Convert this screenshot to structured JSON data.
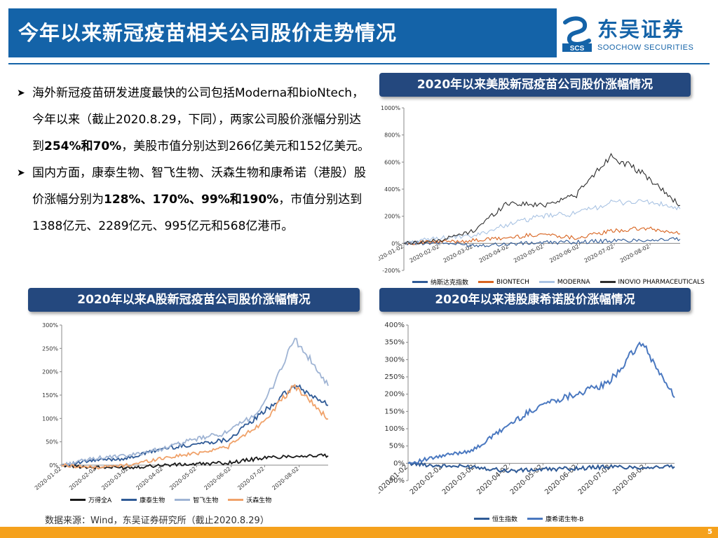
{
  "page_title": "今年以来新冠疫苗相关公司股价走势情况",
  "logo": {
    "cn": "东吴证券",
    "en": "SOOCHOW SECURITIES",
    "mark": "SCS"
  },
  "bullets": [
    {
      "parts": [
        {
          "t": "海外新冠疫苗研发进度最快的公司包括Moderna和bioNtech，今年以来（截止2020.8.29，下同），两家公司股价涨幅分别达到",
          "b": false
        },
        {
          "t": "254%和70%",
          "b": true
        },
        {
          "t": "，美股市值分别达到266亿美元和152亿美元。",
          "b": false
        }
      ]
    },
    {
      "parts": [
        {
          "t": "国内方面，康泰生物、智飞生物、沃森生物和康希诺（港股）股价涨幅分别为",
          "b": false
        },
        {
          "t": "128%、170%、99%和190%",
          "b": true
        },
        {
          "t": "，市值分别达到1388亿元、2289亿元、995亿元和568亿港币。",
          "b": false
        }
      ]
    }
  ],
  "source_note": "数据来源：Wind，东吴证券研究所（截止2020.8.29）",
  "page_number": "5",
  "chart_data": [
    {
      "id": "us",
      "type": "line",
      "title": "2020年以来美股新冠疫苗公司股价涨幅情况",
      "ylim": [
        -200,
        1000
      ],
      "yticks": [
        -200,
        0,
        200,
        400,
        600,
        800,
        1000
      ],
      "ytick_labels": [
        "-200%",
        "0%",
        "200%",
        "400%",
        "600%",
        "800%",
        "1000%"
      ],
      "x": [
        "2020-01-02",
        "2020-02-02",
        "2020-03-02",
        "2020-04-02",
        "2020-05-02",
        "2020-06-02",
        "2020-07-02",
        "2020-08-02",
        "2020-08-28"
      ],
      "xtick_labels": [
        "2020-01-02",
        "2020-02-02",
        "2020-03-02",
        "2020-04-02",
        "2020-05-02",
        "2020-06-02",
        "2020-07-02",
        "2020-08-02"
      ],
      "grid": false,
      "legend": "bottom",
      "series": [
        {
          "name": "纳斯达克指数",
          "color": "#2f5a96",
          "values": [
            0,
            5,
            -15,
            -5,
            5,
            10,
            18,
            25,
            30
          ]
        },
        {
          "name": "BIONTECH",
          "color": "#d86420",
          "values": [
            0,
            10,
            20,
            40,
            70,
            40,
            90,
            110,
            70
          ]
        },
        {
          "name": "MODERNA",
          "color": "#a9c3e3",
          "values": [
            0,
            40,
            50,
            140,
            200,
            220,
            300,
            310,
            254
          ]
        },
        {
          "name": "INOVIO PHARMACEUTICALS",
          "color": "#2d2d2d",
          "values": [
            0,
            20,
            90,
            300,
            280,
            360,
            650,
            500,
            280
          ]
        }
      ]
    },
    {
      "id": "a",
      "type": "line",
      "title": "2020年以来A股新冠疫苗公司股价涨幅情况",
      "ylim": [
        0,
        300
      ],
      "yticks": [
        0,
        50,
        100,
        150,
        200,
        250,
        300
      ],
      "ytick_labels": [
        "0%",
        "50%",
        "100%",
        "150%",
        "200%",
        "250%",
        "300%"
      ],
      "x": [
        "2020-01-02",
        "2020-02-02",
        "2020-03-02",
        "2020-04-02",
        "2020-05-02",
        "2020-06-02",
        "2020-07-02",
        "2020-08-02",
        "2020-08-28"
      ],
      "xtick_labels": [
        "2020-01-02",
        "2020-02-02",
        "2020-03-02",
        "2020-04-02",
        "2020-05-02",
        "2020-06-02",
        "2020-07-02",
        "2020-08-02"
      ],
      "grid": false,
      "legend": "bottom",
      "series": [
        {
          "name": "万得全A",
          "color": "#1a1a1a",
          "values": [
            0,
            -5,
            -5,
            0,
            2,
            5,
            15,
            20,
            20
          ]
        },
        {
          "name": "康泰生物",
          "color": "#2f5a96",
          "values": [
            0,
            10,
            15,
            35,
            45,
            55,
            110,
            170,
            128
          ]
        },
        {
          "name": "智飞生物",
          "color": "#9fb4d4",
          "values": [
            0,
            15,
            20,
            35,
            55,
            70,
            120,
            270,
            170
          ]
        },
        {
          "name": "沃森生物",
          "color": "#f0a26a",
          "values": [
            0,
            -5,
            0,
            15,
            25,
            40,
            90,
            170,
            99
          ]
        }
      ]
    },
    {
      "id": "hk",
      "type": "line",
      "title": "2020年以来港股康希诺股价涨幅情况",
      "ylim": [
        -50,
        400
      ],
      "yticks": [
        -50,
        0,
        50,
        100,
        150,
        200,
        250,
        300,
        350,
        400
      ],
      "ytick_labels": [
        "-50%",
        "0%",
        "50%",
        "100%",
        "150%",
        "200%",
        "250%",
        "300%",
        "350%",
        "400%"
      ],
      "x": [
        "2020-01-02",
        "2020-02-02",
        "2020-03-02",
        "2020-04-02",
        "2020-05-02",
        "2020-06-02",
        "2020-07-02",
        "2020-08-02",
        "2020-08-28"
      ],
      "xtick_labels": [
        "2020-01-02",
        "2020-02-02",
        "2020-03-02",
        "2020-04-02",
        "2020-05-02",
        "2020-06-02",
        "2020-07-02",
        "2020-08-02"
      ],
      "grid": false,
      "legend": "bottom",
      "series": [
        {
          "name": "恒生指数",
          "color": "#2f5a96",
          "values": [
            0,
            -8,
            -10,
            -22,
            -18,
            -15,
            -10,
            -12,
            -10
          ]
        },
        {
          "name": "康希诺生物-B",
          "color": "#4a78c0",
          "values": [
            0,
            20,
            40,
            110,
            170,
            200,
            230,
            350,
            190
          ]
        }
      ]
    }
  ]
}
